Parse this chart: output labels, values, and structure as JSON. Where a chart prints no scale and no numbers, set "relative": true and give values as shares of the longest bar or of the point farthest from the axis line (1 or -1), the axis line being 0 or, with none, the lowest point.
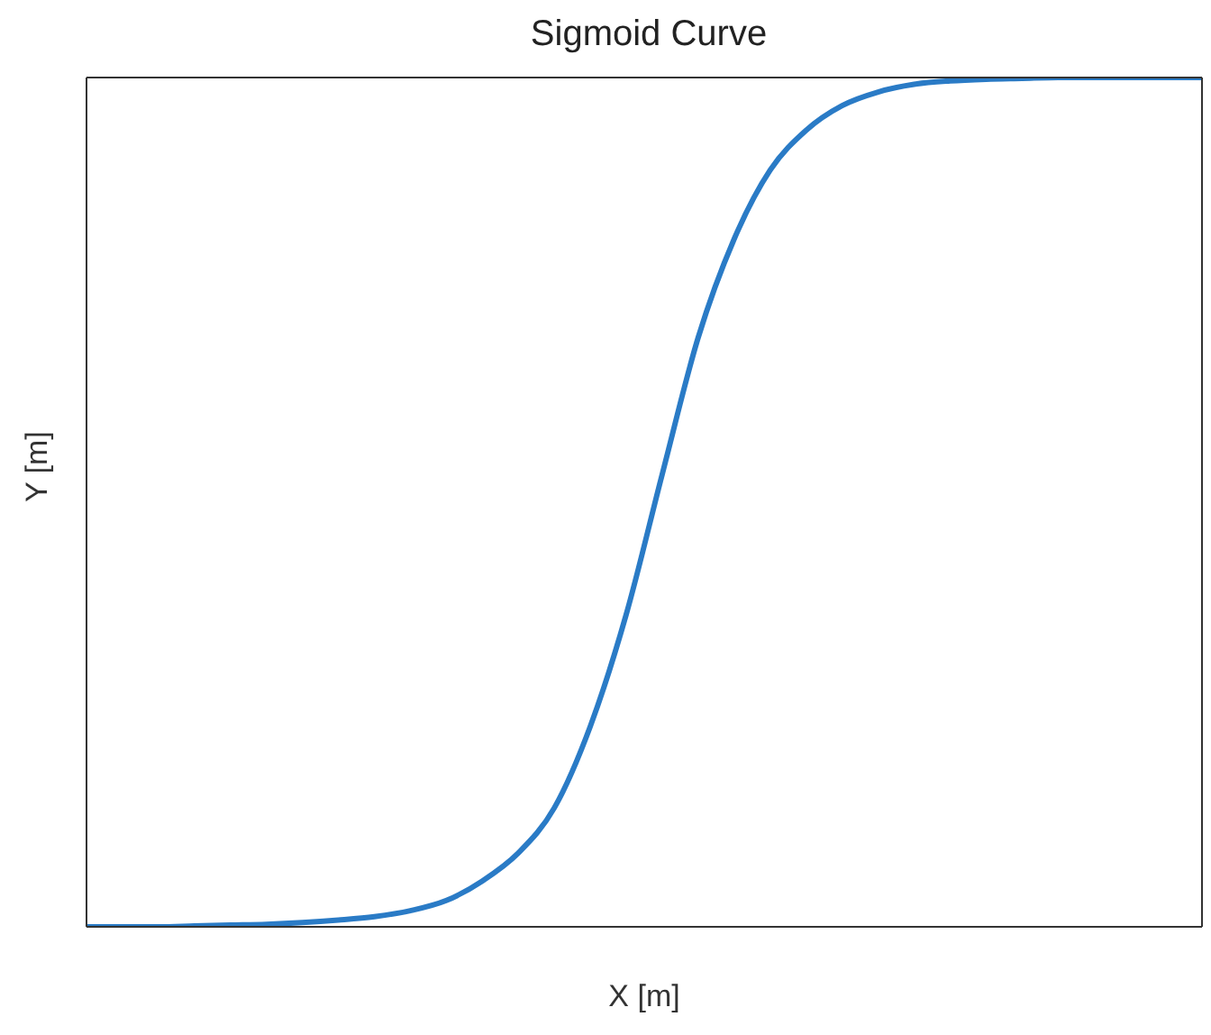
{
  "chart_data": {
    "type": "line",
    "title": "Sigmoid Curve",
    "xlabel": "X [m]",
    "ylabel": "Y [m]",
    "relative": true,
    "grid": false,
    "legend": false,
    "marker": "none",
    "line_style": "solid",
    "categories": [
      null,
      null,
      null,
      null,
      null,
      null,
      null,
      null,
      null,
      null,
      null,
      null,
      null,
      null,
      null,
      null,
      null,
      null,
      null,
      null,
      null,
      null,
      null,
      null,
      null,
      null,
      null,
      null,
      null,
      null,
      null,
      null
    ],
    "series": [
      {
        "color": "#2a7bc6",
        "values": [
          0,
          0,
          0,
          0.001,
          0.002,
          0.003,
          0.005,
          0.008,
          0.012,
          0.019,
          0.031,
          0.054,
          0.087,
          0.14,
          0.236,
          0.368,
          0.533,
          0.694,
          0.81,
          0.891,
          0.938,
          0.967,
          0.983,
          0.992,
          0.996,
          0.998,
          0.999,
          1,
          1,
          1,
          1,
          1
        ]
      }
    ]
  }
}
